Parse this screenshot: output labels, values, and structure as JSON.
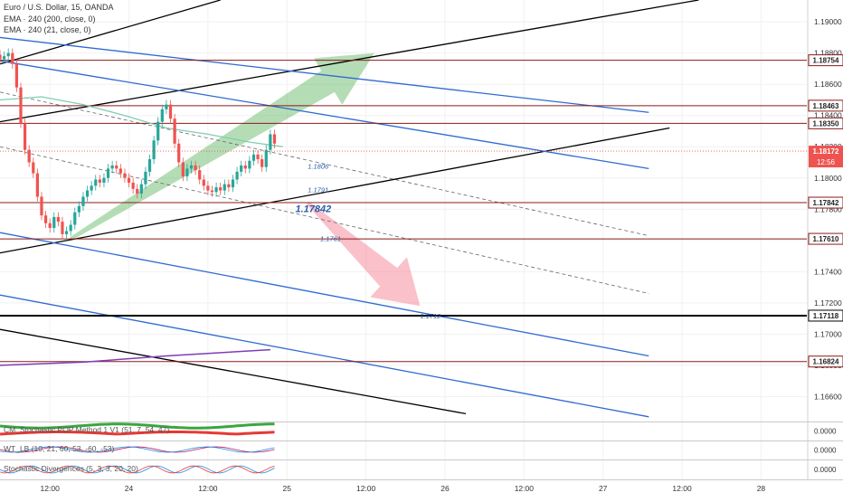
{
  "header": {
    "symbol_title": "Euro / U.S. Dollar, 15, OANDA",
    "ema_200_label": "EMA · 240 (200, close, 0)",
    "ema_21_label": "EMA · 240 (21, close, 0)"
  },
  "chart_data": {
    "type": "line",
    "title": "Euro / U.S. Dollar, 15, OANDA",
    "xlabel": "",
    "ylabel": "",
    "ylim": [
      1.1644,
      1.1914
    ],
    "price_ticks": [
      1.19,
      1.188,
      1.186,
      1.184,
      1.182,
      1.18,
      1.178,
      1.176,
      1.174,
      1.172,
      1.17,
      1.168,
      1.166
    ],
    "time_ticks": [
      "12:00",
      "24",
      "12:00",
      "25",
      "12:00",
      "26",
      "12:00",
      "27",
      "12:00",
      "28"
    ],
    "time_tick_index": [
      12,
      31,
      50,
      69,
      88,
      107,
      126,
      145,
      164,
      183
    ],
    "x_range": [
      0,
      194
    ],
    "candle_start_index": 0,
    "candles_close": [
      1.1876,
      1.1878,
      1.188,
      1.1873,
      1.1858,
      1.1835,
      1.1818,
      1.181,
      1.1803,
      1.1788,
      1.1776,
      1.1771,
      1.1768,
      1.1775,
      1.1772,
      1.1764,
      1.1766,
      1.177,
      1.1778,
      1.1782,
      1.1788,
      1.1792,
      1.1795,
      1.1799,
      1.1797,
      1.18,
      1.1806,
      1.1808,
      1.1806,
      1.1803,
      1.18,
      1.1797,
      1.1793,
      1.179,
      1.1796,
      1.1804,
      1.1812,
      1.1824,
      1.1836,
      1.1844,
      1.1847,
      1.1838,
      1.1822,
      1.181,
      1.1801,
      1.1806,
      1.1808,
      1.1805,
      1.1799,
      1.1795,
      1.1792,
      1.1791,
      1.1794,
      1.1792,
      1.1796,
      1.1794,
      1.1799,
      1.1804,
      1.1808,
      1.1806,
      1.1811,
      1.1815,
      1.1812,
      1.1807,
      1.1818,
      1.1828,
      1.1822
    ],
    "last_price": 1.18172,
    "countdown": "12:56",
    "horizontal_levels": [
      {
        "label": "1.18754",
        "price": 1.18754,
        "color": "#8b1a1a",
        "bold": false
      },
      {
        "label": "1.18463",
        "price": 1.18463,
        "color": "#8b1a1a",
        "bold": false
      },
      {
        "label": "1.18350",
        "price": 1.1835,
        "color": "#8b1a1a",
        "bold": false
      },
      {
        "label": "1.17842",
        "price": 1.17842,
        "color": "#8b1a1a",
        "bold": false
      },
      {
        "label": "1.17610",
        "price": 1.1761,
        "color": "#8b1a1a",
        "bold": false
      },
      {
        "label": "1.17118",
        "price": 1.17118,
        "color": "#000000",
        "bold": true
      },
      {
        "label": "1.16824",
        "price": 1.16824,
        "color": "#8b1a1a",
        "bold": false
      }
    ],
    "price_annotations": [
      {
        "text": "1.1806",
        "x": 74,
        "y": 1.1806
      },
      {
        "text": "1.1791",
        "x": 74,
        "y": 1.1791
      },
      {
        "text": "1.17842",
        "x": 71,
        "y": 1.1778,
        "emphasis": true
      },
      {
        "text": "1.1761",
        "x": 77,
        "y": 1.17595
      },
      {
        "text": "1.1712",
        "x": 101,
        "y": 1.171
      }
    ],
    "trendlines": [
      {
        "color": "#000000",
        "points": [
          [
            0,
            1.1873
          ],
          [
            53,
            1.1914
          ]
        ]
      },
      {
        "color": "#000000",
        "points": [
          [
            0,
            1.1836
          ],
          [
            168,
            1.1914
          ]
        ]
      },
      {
        "color": "#000000",
        "points": [
          [
            0,
            1.1752
          ],
          [
            161,
            1.1832
          ]
        ]
      },
      {
        "color": "#000000",
        "points": [
          [
            0,
            1.1703
          ],
          [
            112,
            1.1649
          ]
        ]
      },
      {
        "color": "#2e6ad1",
        "points": [
          [
            0,
            1.189
          ],
          [
            156,
            1.1842
          ]
        ]
      },
      {
        "color": "#2e6ad1",
        "points": [
          [
            0,
            1.1875
          ],
          [
            156,
            1.1806
          ]
        ]
      },
      {
        "color": "#2e6ad1",
        "points": [
          [
            0,
            1.1765
          ],
          [
            156,
            1.1686
          ]
        ]
      },
      {
        "color": "#2e6ad1",
        "points": [
          [
            0,
            1.1725
          ],
          [
            156,
            1.1647
          ]
        ]
      }
    ],
    "dashed_lines": [
      {
        "color": "#666666",
        "points": [
          [
            0,
            1.1855
          ],
          [
            156,
            1.1763
          ]
        ]
      },
      {
        "color": "#666666",
        "points": [
          [
            0,
            1.182
          ],
          [
            156,
            1.1726
          ]
        ]
      }
    ],
    "ema_200": [
      [
        0,
        1.185
      ],
      [
        10,
        1.1852
      ],
      [
        20,
        1.1847
      ],
      [
        30,
        1.184
      ],
      [
        40,
        1.1832
      ],
      [
        50,
        1.1828
      ],
      [
        60,
        1.1823
      ],
      [
        68,
        1.182
      ]
    ],
    "purple_line": [
      [
        0,
        1.168
      ],
      [
        20,
        1.1682
      ],
      [
        40,
        1.1686
      ],
      [
        65,
        1.169
      ]
    ],
    "arrows": [
      {
        "color": "#4caf50",
        "from": [
          17,
          1.1761
        ],
        "to": [
          90,
          1.188
        ]
      },
      {
        "color": "#f36c80",
        "from": [
          74,
          1.1784
        ],
        "to": [
          101,
          1.1718
        ]
      }
    ]
  },
  "indicators": [
    {
      "label": "CM_Stochastic POP Method 1 V1 (51, 7, 54, 47)",
      "values": [
        "0.0000"
      ]
    },
    {
      "label": "WT_LB (10, 21, 60, 53, -60, -53)",
      "values": [
        "0.0000"
      ]
    },
    {
      "label": "Stochastic Divergences (5, 3, 3, 20, 20)",
      "values": [
        "0.0000"
      ]
    }
  ]
}
